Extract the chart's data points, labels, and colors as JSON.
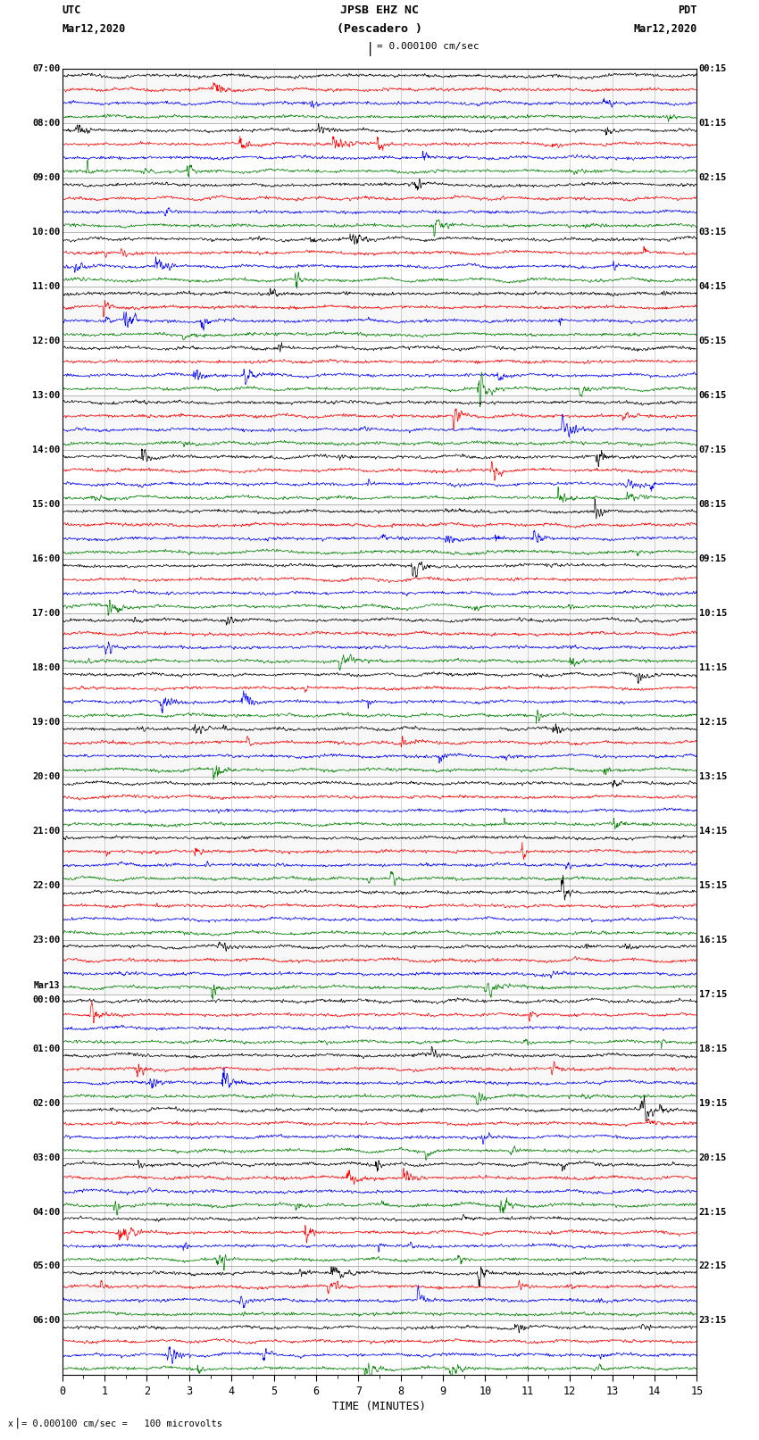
{
  "title_line1": "JPSB EHZ NC",
  "title_line2": "(Pescadero )",
  "scale_text": "= 0.000100 cm/sec",
  "footer_text": "= 0.000100 cm/sec =   100 microvolts",
  "utc_label": "UTC",
  "pdt_label": "PDT",
  "date_left": "Mar12,2020",
  "date_right": "Mar12,2020",
  "xlabel": "TIME (MINUTES)",
  "bg_color": "#ffffff",
  "trace_colors": [
    "black",
    "red",
    "blue",
    "green"
  ],
  "num_minutes": 15,
  "num_rows": 96,
  "traces_per_group": 4,
  "left_label_times_utc": [
    "07:00",
    "08:00",
    "09:00",
    "10:00",
    "11:00",
    "12:00",
    "13:00",
    "14:00",
    "15:00",
    "16:00",
    "17:00",
    "18:00",
    "19:00",
    "20:00",
    "21:00",
    "22:00",
    "23:00",
    "Mar13\n00:00",
    "01:00",
    "02:00",
    "03:00",
    "04:00",
    "05:00",
    "06:00"
  ],
  "right_label_times_pdt": [
    "00:15",
    "01:15",
    "02:15",
    "03:15",
    "04:15",
    "05:15",
    "06:15",
    "07:15",
    "08:15",
    "09:15",
    "10:15",
    "11:15",
    "12:15",
    "13:15",
    "14:15",
    "15:15",
    "16:15",
    "17:15",
    "18:15",
    "19:15",
    "20:15",
    "21:15",
    "22:15",
    "23:15"
  ],
  "figwidth": 8.5,
  "figheight": 16.13,
  "dpi": 100,
  "noise_seed": 12345
}
